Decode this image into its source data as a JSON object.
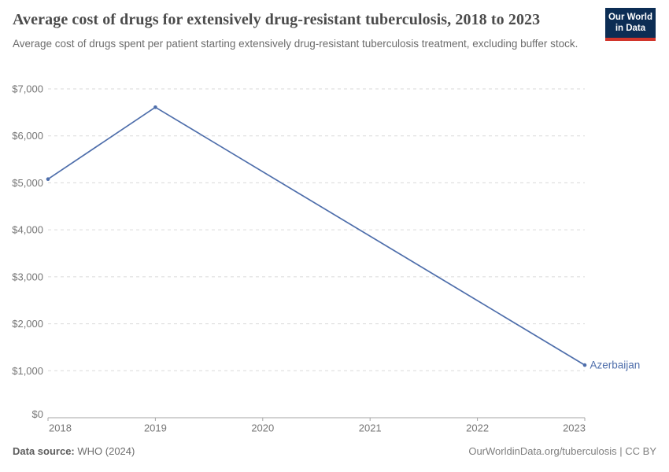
{
  "header": {
    "title": "Average cost of drugs for extensively drug-resistant tuberculosis, 2018 to 2023",
    "subtitle": "Average cost of drugs spent per patient starting extensively drug-resistant tuberculosis treatment, excluding buffer stock.",
    "logo": {
      "line1": "Our World",
      "line2": "in Data",
      "bg_color": "#0c2d54",
      "accent_color": "#d1352b"
    }
  },
  "chart_data": {
    "type": "line",
    "title": "Average cost of drugs for extensively drug-resistant tuberculosis, 2018 to 2023",
    "xlabel": "",
    "ylabel": "",
    "xlim": [
      2018,
      2023
    ],
    "ylim": [
      0,
      7000
    ],
    "grid": "horizontal dashed gridlines, solid baseline at $0",
    "legend": "end-of-line entity label",
    "series": [
      {
        "name": "Azerbaijan",
        "color": "#4e6eab",
        "points": [
          [
            2018,
            5080
          ],
          [
            2019,
            6610
          ],
          [
            2023,
            1120
          ]
        ],
        "note": "no data for 2020-2022; straight segment connects 2019 to 2023"
      }
    ],
    "xticks": [
      {
        "value": 2018,
        "label": "2018"
      },
      {
        "value": 2019,
        "label": "2019"
      },
      {
        "value": 2020,
        "label": "2020"
      },
      {
        "value": 2021,
        "label": "2021"
      },
      {
        "value": 2022,
        "label": "2022"
      },
      {
        "value": 2023,
        "label": "2023"
      }
    ],
    "yticks": [
      {
        "value": 0,
        "label": "$0"
      },
      {
        "value": 1000,
        "label": "$1,000"
      },
      {
        "value": 2000,
        "label": "$2,000"
      },
      {
        "value": 3000,
        "label": "$3,000"
      },
      {
        "value": 4000,
        "label": "$4,000"
      },
      {
        "value": 5000,
        "label": "$5,000"
      },
      {
        "value": 6000,
        "label": "$6,000"
      },
      {
        "value": 7000,
        "label": "$7,000"
      }
    ],
    "colors": {
      "grid": "#dadada",
      "axis": "#a6a6a6",
      "tick_text": "#767676"
    }
  },
  "footer": {
    "datasource_label": "Data source:",
    "datasource_value": "WHO (2024)",
    "link": "OurWorldinData.org/tuberculosis | CC BY"
  }
}
